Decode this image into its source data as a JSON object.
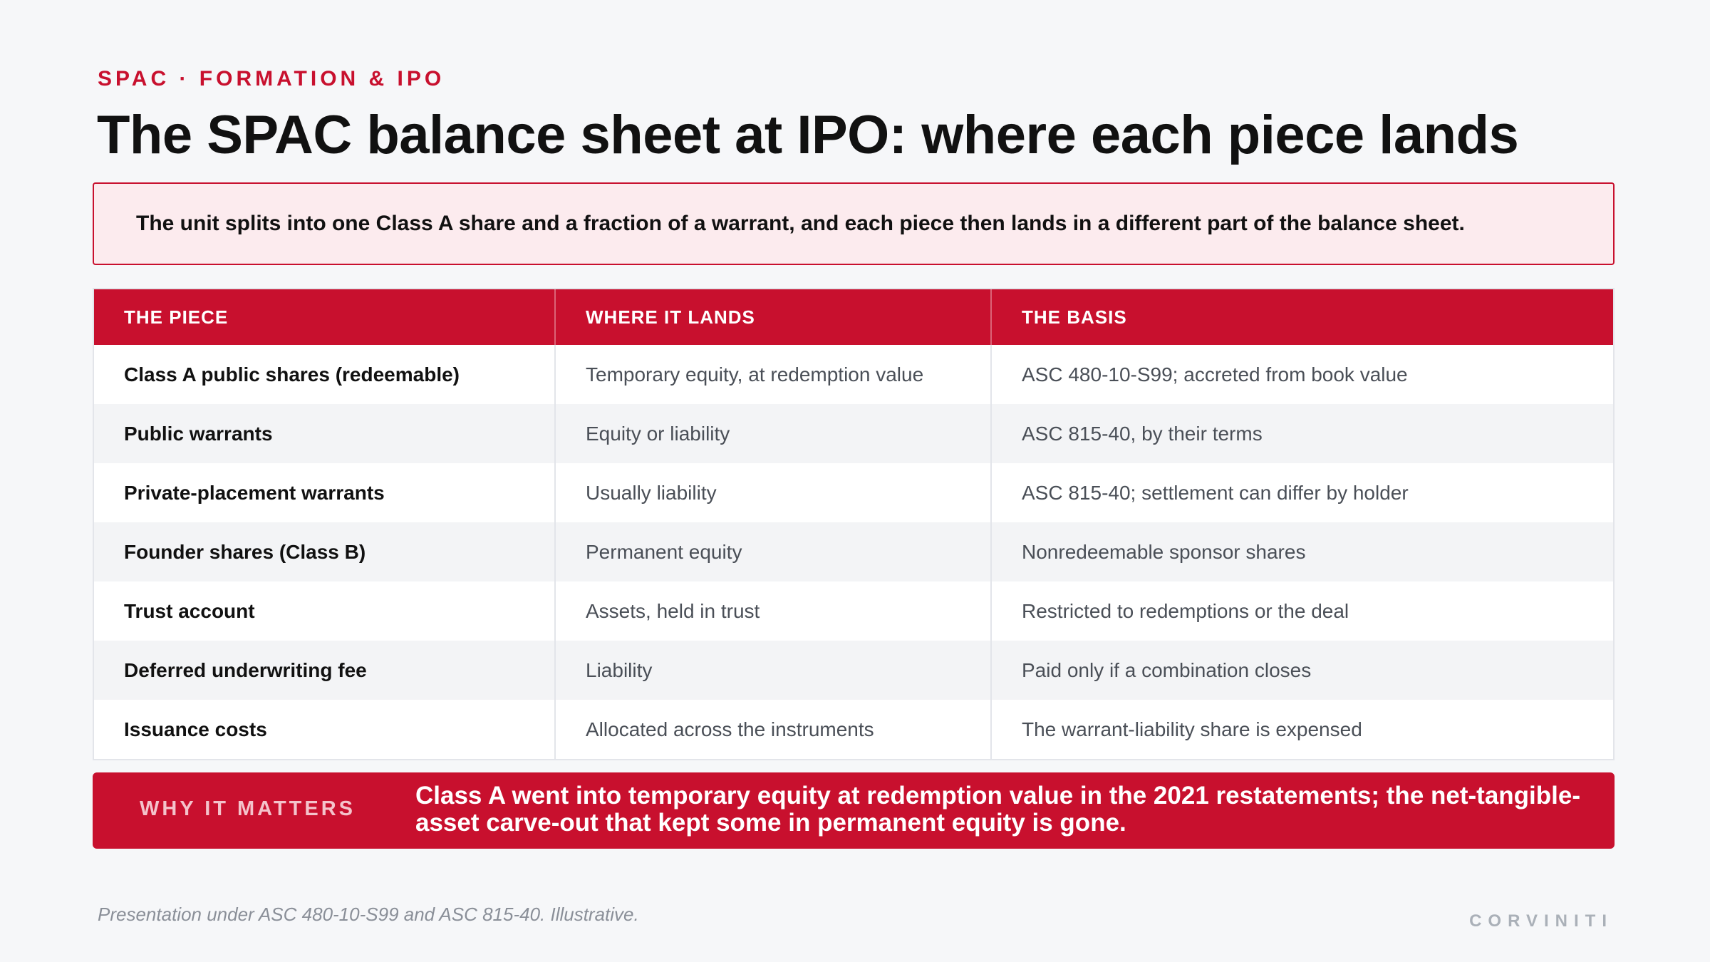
{
  "header": {
    "kicker": "SPAC · FORMATION & IPO",
    "title": "The SPAC balance sheet at IPO: where each piece lands"
  },
  "callout": {
    "text": "The unit splits into one Class A share and a fraction of a warrant, and each piece then lands in a different part of the balance sheet."
  },
  "table": {
    "headers": [
      "THE PIECE",
      "WHERE IT LANDS",
      "THE BASIS"
    ],
    "rows": [
      [
        "Class A public shares (redeemable)",
        "Temporary equity, at redemption value",
        "ASC 480-10-S99; accreted from book value"
      ],
      [
        "Public warrants",
        "Equity or liability",
        "ASC 815-40, by their terms"
      ],
      [
        "Private-placement warrants",
        "Usually liability",
        "ASC 815-40; settlement can differ by holder"
      ],
      [
        "Founder shares (Class B)",
        "Permanent equity",
        "Nonredeemable sponsor shares"
      ],
      [
        "Trust account",
        "Assets, held in trust",
        "Restricted to redemptions or the deal"
      ],
      [
        "Deferred underwriting fee",
        "Liability",
        "Paid only if a combination closes"
      ],
      [
        "Issuance costs",
        "Allocated across the instruments",
        "The warrant-liability share is expensed"
      ]
    ]
  },
  "banner": {
    "label": "WHY IT MATTERS",
    "text": "Class A went into temporary equity at redemption value in the 2021 restatements; the net-tangible-asset carve-out that kept some in permanent equity is gone."
  },
  "footer": {
    "note": "Presentation under ASC 480-10-S99 and ASC 815-40. Illustrative.",
    "brand": "CORVINITI"
  },
  "colors": {
    "accent": "#c8102e",
    "callout_bg": "#fcebee",
    "page_bg": "#f6f7f9",
    "row_alt_bg": "#f3f4f6"
  }
}
